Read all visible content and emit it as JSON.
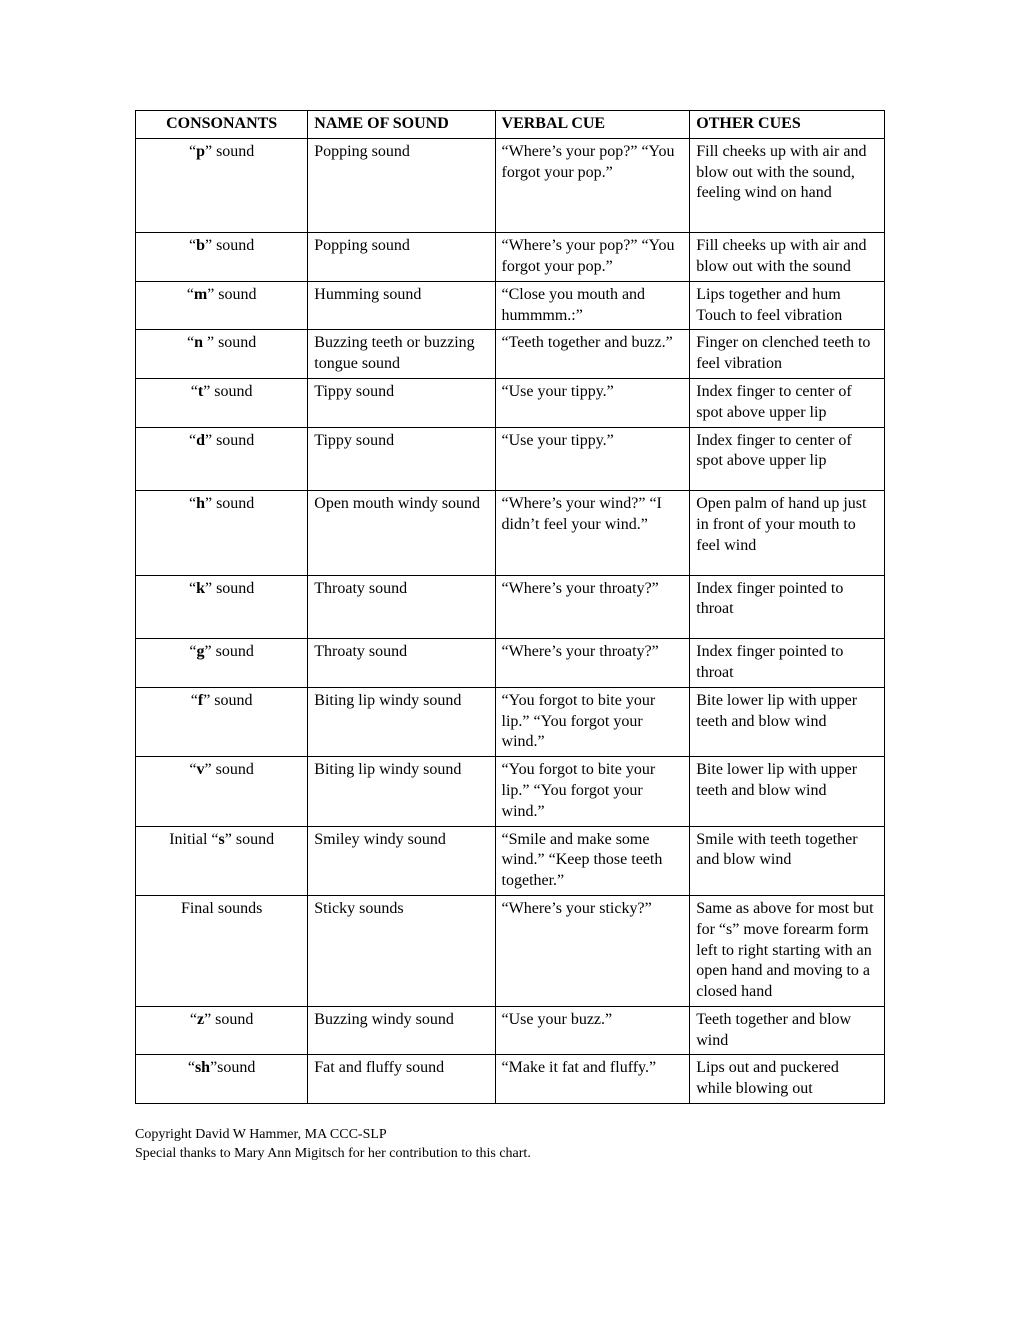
{
  "table": {
    "headers": [
      "CONSONANTS",
      "NAME OF SOUND",
      "VERBAL CUE",
      "OTHER CUES"
    ],
    "background_color": "#ffffff",
    "border_color": "#000000",
    "text_color": "#000000",
    "font_family": "Times New Roman",
    "header_fontsize": 16,
    "cell_fontsize": 16,
    "column_widths_pct": [
      23,
      25,
      26,
      26
    ],
    "rows": [
      {
        "consonant": "“<b>p</b>” sound",
        "name": "Popping sound",
        "verbal": "“Where’s your pop?” “You forgot your pop.”",
        "other": "Fill cheeks up with air and blow out with the sound, feeling wind on hand",
        "extra": "extra-space"
      },
      {
        "consonant": "“<b>b</b>” sound",
        "name": "Popping sound",
        "verbal": "“Where’s your pop?” “You forgot your pop.”",
        "other": "Fill cheeks up with air and blow out with the sound",
        "extra": ""
      },
      {
        "consonant": "“<b>m</b>” sound",
        "name": "Humming sound",
        "verbal": "“Close you mouth and hummmm.:”",
        "other": "Lips together and hum Touch to feel vibration",
        "extra": ""
      },
      {
        "consonant": "“<b>n</b> ” sound",
        "name": "Buzzing teeth or buzzing tongue sound",
        "verbal": "“Teeth together and buzz.”",
        "other": "Finger on clenched teeth to feel vibration",
        "extra": ""
      },
      {
        "consonant": "“<b>t</b>” sound",
        "name": "Tippy sound",
        "verbal": "“Use your tippy.”",
        "other": "Index finger to center of spot above upper lip",
        "extra": ""
      },
      {
        "consonant": "“<b>d</b>” sound",
        "name": "Tippy sound",
        "verbal": "“Use your tippy.”",
        "other": "Index finger to center of spot above upper lip",
        "extra": "med-space"
      },
      {
        "consonant": "“<b>h</b>” sound",
        "name": "Open mouth windy sound",
        "verbal": "“Where’s your wind?” “I didn’t feel your wind.”",
        "other": "Open palm of hand up just in front of your mouth to feel wind",
        "extra": "med-space"
      },
      {
        "consonant": "“<b>k</b>” sound",
        "name": "Throaty sound",
        "verbal": "“Where’s your throaty?”",
        "other": "Index finger pointed to throat",
        "extra": "med-space"
      },
      {
        "consonant": "“<b>g</b>” sound",
        "name": "Throaty sound",
        "verbal": "“Where’s your throaty?”",
        "other": "Index finger pointed to throat",
        "extra": ""
      },
      {
        "consonant": "“<b>f</b>” sound",
        "name": "Biting lip windy sound",
        "verbal": "“You forgot to bite your lip.”  “You forgot your wind.”",
        "other": "Bite lower lip with upper teeth and blow wind",
        "extra": ""
      },
      {
        "consonant": "“<b>v</b>” sound",
        "name": "Biting lip windy sound",
        "verbal": "“You forgot to bite your lip.”  “You forgot your wind.”",
        "other": "Bite lower lip with upper teeth and blow wind",
        "extra": ""
      },
      {
        "consonant": "Initial “<b>s</b>” sound",
        "name": "Smiley windy sound",
        "verbal": "“Smile and make some wind.”  “Keep those teeth together.”",
        "other": "Smile with teeth together and blow wind",
        "extra": ""
      },
      {
        "consonant": "Final sounds",
        "name": "Sticky sounds",
        "verbal": "“Where’s your sticky?”",
        "other": "Same as above for most but for “s” move forearm form left to right starting with an open hand and moving to a closed hand",
        "extra": ""
      },
      {
        "consonant": "“<b>z</b>” sound",
        "name": "Buzzing windy sound",
        "verbal": "“Use your buzz.”",
        "other": "Teeth together and blow wind",
        "extra": ""
      },
      {
        "consonant": "“<b>sh</b>”sound",
        "name": "Fat and fluffy sound",
        "verbal": "“Make it fat and fluffy.”",
        "other": "Lips out and puckered while blowing out",
        "extra": ""
      }
    ]
  },
  "footer": {
    "line1": "Copyright David W Hammer, MA CCC-SLP",
    "line2": "Special thanks to Mary Ann Migitsch for her contribution to this chart.",
    "fontsize": 14
  }
}
